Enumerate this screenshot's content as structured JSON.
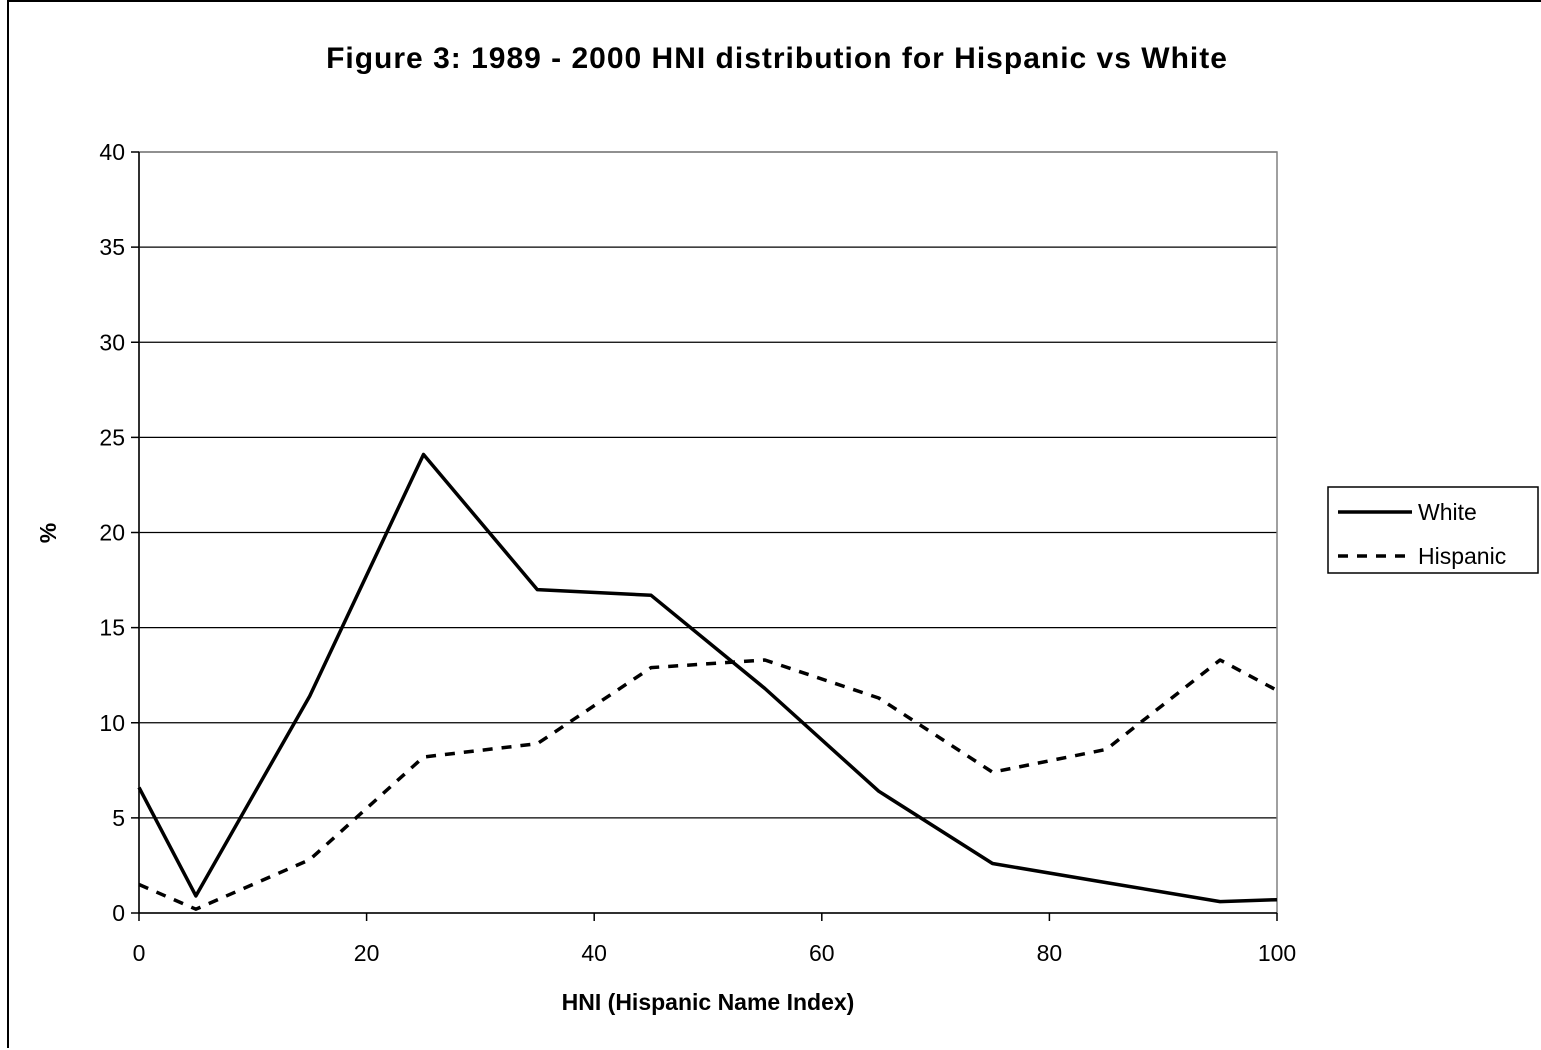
{
  "chart_data": {
    "type": "line",
    "title": "Figure 3: 1989 - 2000 HNI distribution for Hispanic vs White",
    "xlabel": "HNI (Hispanic Name Index)",
    "ylabel": "%",
    "xlim": [
      0,
      100
    ],
    "ylim": [
      0,
      40
    ],
    "xticks": [
      0,
      20,
      40,
      60,
      80,
      100
    ],
    "yticks": [
      0,
      5,
      10,
      15,
      20,
      25,
      30,
      35,
      40
    ],
    "grid": "horizontal",
    "legend_position": "right",
    "x": [
      0,
      5,
      15,
      25,
      35,
      45,
      55,
      65,
      75,
      85,
      95,
      100
    ],
    "series": [
      {
        "name": "White",
        "style": "solid",
        "color": "#000000",
        "values": [
          6.6,
          0.9,
          11.4,
          24.1,
          17.0,
          16.7,
          11.8,
          6.4,
          2.6,
          1.6,
          0.6,
          0.7
        ]
      },
      {
        "name": "Hispanic",
        "style": "dashed",
        "color": "#000000",
        "values": [
          1.5,
          0.2,
          2.8,
          8.2,
          8.9,
          12.9,
          13.3,
          11.3,
          7.4,
          8.6,
          13.3,
          11.7
        ]
      }
    ]
  }
}
